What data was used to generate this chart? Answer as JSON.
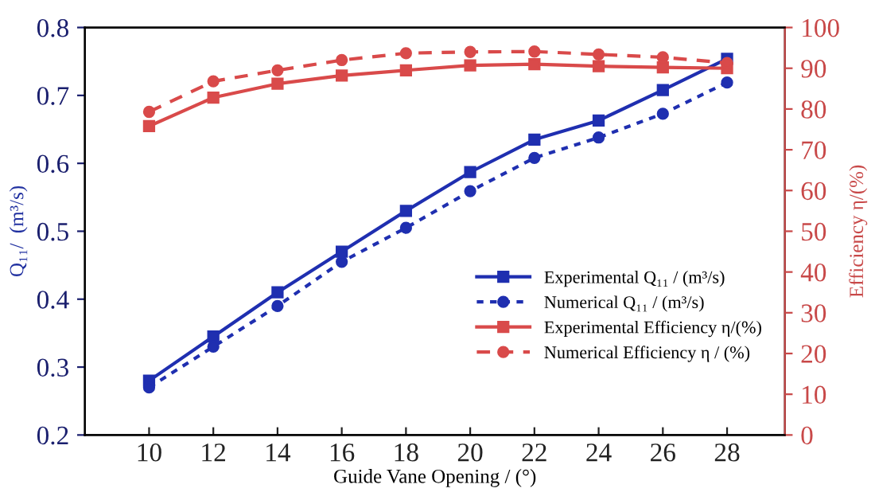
{
  "chart_data": {
    "type": "line",
    "xlabel": "Guide Vane Opening / (°)",
    "ylabel": "Q₁₁/  (m³/s)",
    "y2label": "Efficiency η/(%)",
    "x": [
      10,
      12,
      14,
      16,
      18,
      20,
      22,
      24,
      26,
      28
    ],
    "xlim": [
      8,
      29.8
    ],
    "xticks": [
      10,
      12,
      14,
      16,
      18,
      20,
      22,
      24,
      26,
      28
    ],
    "ylim": [
      0.2,
      0.8
    ],
    "yticks": [
      0.2,
      0.3,
      0.4,
      0.5,
      0.6,
      0.7,
      0.8
    ],
    "y2lim": [
      0,
      100
    ],
    "y2ticks": [
      0,
      10,
      20,
      30,
      40,
      50,
      60,
      70,
      80,
      90,
      100
    ],
    "grid": false,
    "legend": "bottom right",
    "series": [
      {
        "name": "Experimental Q₁₁ / (m³/s)",
        "color": "#1f2fb0",
        "marker": "square",
        "line_style": "solid",
        "values": [
          0.28,
          0.345,
          0.41,
          0.47,
          0.53,
          0.587,
          0.635,
          0.663,
          0.708,
          0.754
        ]
      },
      {
        "name": "Numerical Q₁₁ / (m³/s)",
        "color": "#1f2fb0",
        "marker": "circle",
        "line_style": "dotted",
        "values": [
          0.27,
          0.33,
          0.39,
          0.455,
          0.505,
          0.559,
          0.608,
          0.638,
          0.673,
          0.719
        ]
      },
      {
        "name": "Experimental Efficiency η/(%)",
        "color": "#d94a4a",
        "marker": "square",
        "line_style": "solid",
        "axis": "y2",
        "values": [
          75.8,
          82.8,
          86.2,
          88.2,
          89.5,
          90.7,
          91,
          90.5,
          90.2,
          90
        ]
      },
      {
        "name": "Numerical Efficiency η / (%)",
        "color": "#d94a4a",
        "marker": "circle",
        "line_style": "dashed",
        "axis": "y2",
        "values": [
          79.3,
          86.8,
          89.5,
          92,
          93.7,
          94,
          94.1,
          93.4,
          92.7,
          91.3
        ]
      }
    ]
  }
}
